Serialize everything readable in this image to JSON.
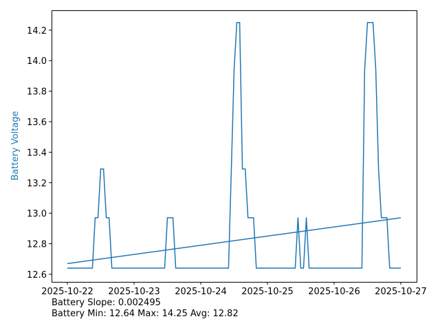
{
  "chart_data": {
    "type": "line",
    "title": "",
    "xlabel": "",
    "ylabel": "Battery Voltage",
    "ylabel_color": "#1f77b4",
    "line_color": "#1f77b4",
    "grid": false,
    "xlim": [
      "2025-10-21 18:18",
      "2025-10-27 05:42"
    ],
    "ylim": [
      12.55,
      14.33
    ],
    "x_ticks": [
      "2025-10-22",
      "2025-10-23",
      "2025-10-24",
      "2025-10-25",
      "2025-10-26",
      "2025-10-27"
    ],
    "y_ticks": [
      12.6,
      12.8,
      13.0,
      13.2,
      13.4,
      13.6,
      13.8,
      14.0,
      14.2
    ],
    "series": [
      {
        "x": [
          "2025-10-22 00:00",
          "2025-10-22 09:00",
          "2025-10-22 10:00",
          "2025-10-22 11:00",
          "2025-10-22 12:00",
          "2025-10-22 13:00",
          "2025-10-22 14:00",
          "2025-10-22 15:00",
          "2025-10-22 16:00",
          "2025-10-23 11:00",
          "2025-10-23 12:00",
          "2025-10-23 14:00",
          "2025-10-23 15:00",
          "2025-10-24 10:00",
          "2025-10-24 11:00",
          "2025-10-24 12:00",
          "2025-10-24 13:00",
          "2025-10-24 14:00",
          "2025-10-24 15:00",
          "2025-10-24 16:00",
          "2025-10-24 17:00",
          "2025-10-24 19:00",
          "2025-10-24 20:00",
          "2025-10-25 10:00",
          "2025-10-25 11:00",
          "2025-10-25 12:00",
          "2025-10-25 13:00",
          "2025-10-25 14:00",
          "2025-10-25 15:00",
          "2025-10-26 10:00",
          "2025-10-26 11:00",
          "2025-10-26 12:00",
          "2025-10-26 14:00",
          "2025-10-26 15:00",
          "2025-10-26 16:00",
          "2025-10-26 17:00",
          "2025-10-26 19:00",
          "2025-10-26 20:00",
          "2025-10-27 00:00"
        ],
        "y": [
          12.64,
          12.64,
          12.97,
          12.97,
          13.29,
          13.29,
          12.97,
          12.97,
          12.64,
          12.64,
          12.97,
          12.97,
          12.64,
          12.64,
          13.29,
          13.94,
          14.25,
          14.25,
          13.29,
          13.29,
          12.97,
          12.97,
          12.64,
          12.64,
          12.97,
          12.64,
          12.64,
          12.97,
          12.64,
          12.64,
          13.94,
          14.25,
          14.25,
          13.94,
          13.29,
          12.97,
          12.97,
          12.64,
          12.64
        ]
      },
      {
        "x": [
          "2025-10-22 00:00",
          "2025-10-27 00:00"
        ],
        "y": [
          12.67,
          12.97
        ]
      }
    ]
  },
  "stats": {
    "slope_line": "Battery Slope: 0.002495",
    "summary_line": "Battery Min: 12.64 Max: 14.25 Avg: 12.82"
  }
}
